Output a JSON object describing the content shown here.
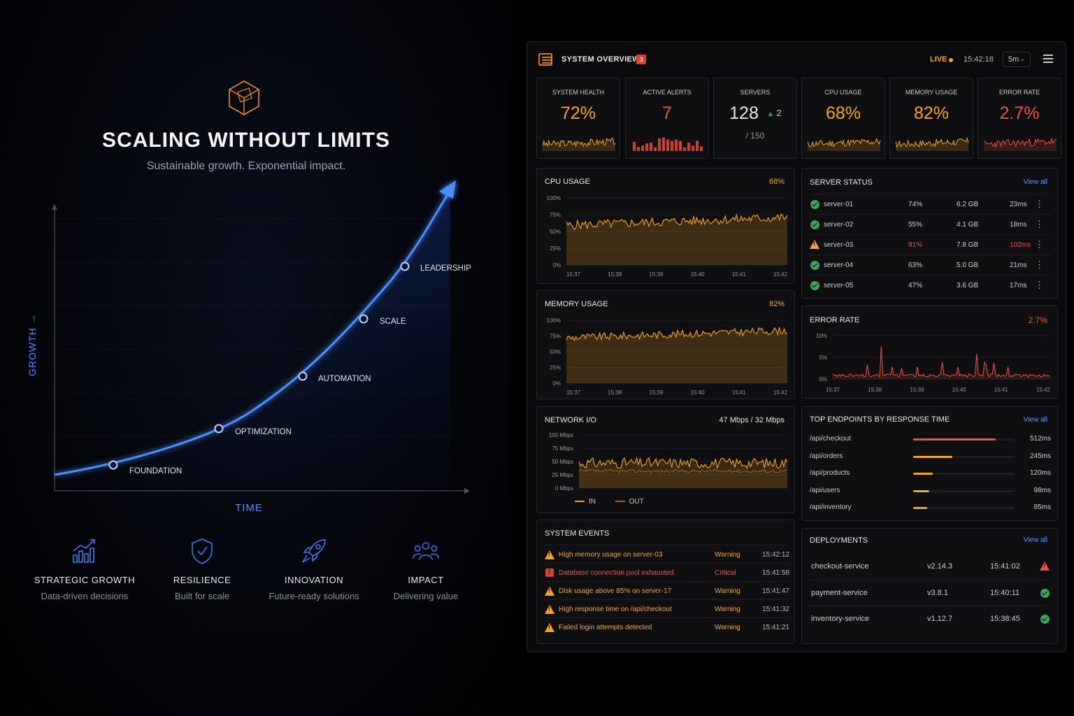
{
  "hero": {
    "title": "SCALING WITHOUT LIMITS",
    "subtitle": "Sustainable growth. Exponential impact.",
    "y_axis_label": "GROWTH →",
    "x_axis_label": "TIME",
    "milestones": [
      "FOUNDATION",
      "OPTIMIZATION",
      "AUTOMATION",
      "SCALE",
      "LEADERSHIP"
    ]
  },
  "features": [
    {
      "title": "STRATEGIC GROWTH",
      "subtitle": "Data-driven decisions",
      "icon": "bar-chart-growth-icon"
    },
    {
      "title": "RESILIENCE",
      "subtitle": "Built for scale",
      "icon": "shield-check-icon"
    },
    {
      "title": "INNOVATION",
      "subtitle": "Future-ready solutions",
      "icon": "rocket-icon"
    },
    {
      "title": "IMPACT",
      "subtitle": "Delivering value",
      "icon": "people-group-icon"
    }
  ],
  "dashboard": {
    "title": "SYSTEM OVERVIEW",
    "alert_count": "3",
    "live_label": "LIVE",
    "clock": "15:42:18",
    "range": "5m",
    "kpis": [
      {
        "label": "SYSTEM HEALTH",
        "value": "72%",
        "color": "#f5a524"
      },
      {
        "label": "ACTIVE ALERTS",
        "value": "7",
        "color": "#e8553f"
      },
      {
        "label": "SERVERS",
        "value": "128",
        "delta": "▲ 2",
        "total": "/ 150",
        "color": "#e6e6e6"
      },
      {
        "label": "CPU USAGE",
        "value": "68%",
        "color": "#f5a524"
      },
      {
        "label": "MEMORY USAGE",
        "value": "82%",
        "color": "#f5a524"
      },
      {
        "label": "ERROR RATE",
        "value": "2.7%",
        "color": "#e8553f"
      }
    ],
    "cpu": {
      "title": "CPU USAGE",
      "value": "68%",
      "y_ticks": [
        "100%",
        "75%",
        "50%",
        "25%",
        "0%"
      ],
      "x_ticks": [
        "15:37",
        "15:38",
        "15:39",
        "15:40",
        "15:41",
        "15:42"
      ]
    },
    "memory": {
      "title": "MEMORY USAGE",
      "value": "82%",
      "y_ticks": [
        "100%",
        "75%",
        "50%",
        "25%",
        "0%"
      ],
      "x_ticks": [
        "15:37",
        "15:38",
        "15:39",
        "15:40",
        "15:41",
        "15:42"
      ]
    },
    "network": {
      "title": "NETWORK I/O",
      "value_in": "47 Mbps",
      "separator": "/",
      "value_out": "32 Mbps",
      "y_ticks": [
        "100 Mbps",
        "75 Mbps",
        "50 Mbps",
        "25 Mbps",
        "0 Mbps"
      ],
      "legend_in": "IN",
      "legend_out": "OUT"
    },
    "servers": {
      "title": "SERVER STATUS",
      "view_all": "View all",
      "rows": [
        {
          "name": "server-01",
          "cpu": "74%",
          "mem": "6.2 GB",
          "latency": "23ms",
          "status": "ok"
        },
        {
          "name": "server-02",
          "cpu": "55%",
          "mem": "4.1 GB",
          "latency": "18ms",
          "status": "ok"
        },
        {
          "name": "server-03",
          "cpu": "91%",
          "mem": "7.8 GB",
          "latency": "102ms",
          "status": "warning"
        },
        {
          "name": "server-04",
          "cpu": "63%",
          "mem": "5.0 GB",
          "latency": "21ms",
          "status": "ok"
        },
        {
          "name": "server-05",
          "cpu": "47%",
          "mem": "3.6 GB",
          "latency": "17ms",
          "status": "ok"
        }
      ]
    },
    "error_rate": {
      "title": "ERROR RATE",
      "value": "2.7%",
      "y_ticks": [
        "10%",
        "5%",
        "0%"
      ],
      "x_ticks": [
        "15:37",
        "15:38",
        "15:39",
        "15:40",
        "15:41",
        "15:42"
      ]
    },
    "endpoints": {
      "title": "TOP ENDPOINTS BY RESPONSE TIME",
      "view_all": "View all",
      "rows": [
        {
          "path": "/api/checkout",
          "time": "512ms",
          "ms": 512
        },
        {
          "path": "/api/orders",
          "time": "245ms",
          "ms": 245
        },
        {
          "path": "/api/products",
          "time": "120ms",
          "ms": 120
        },
        {
          "path": "/api/users",
          "time": "98ms",
          "ms": 98
        },
        {
          "path": "/api/inventory",
          "time": "85ms",
          "ms": 85
        }
      ]
    },
    "events": {
      "title": "SYSTEM EVENTS",
      "rows": [
        {
          "message": "High memory usage on server-03",
          "level": "Warning",
          "time": "15:42:12"
        },
        {
          "message": "Database connection pool exhausted",
          "level": "Critical",
          "time": "15:41:58"
        },
        {
          "message": "Disk usage above 85% on server-17",
          "level": "Warning",
          "time": "15:41:47"
        },
        {
          "message": "High response time on /api/checkout",
          "level": "Warning",
          "time": "15:41:32"
        },
        {
          "message": "Failed login attempts detected",
          "level": "Warning",
          "time": "15:41:21"
        }
      ]
    },
    "deployments": {
      "title": "DEPLOYMENTS",
      "view_all": "View all",
      "rows": [
        {
          "service": "checkout-service",
          "version": "v2.14.3",
          "time": "15:41:02",
          "status": "warning"
        },
        {
          "service": "payment-service",
          "version": "v3.8.1",
          "time": "15:40:11",
          "status": "ok"
        },
        {
          "service": "inventory-service",
          "version": "v1.12.7",
          "time": "15:38:45",
          "status": "ok"
        }
      ]
    }
  }
}
